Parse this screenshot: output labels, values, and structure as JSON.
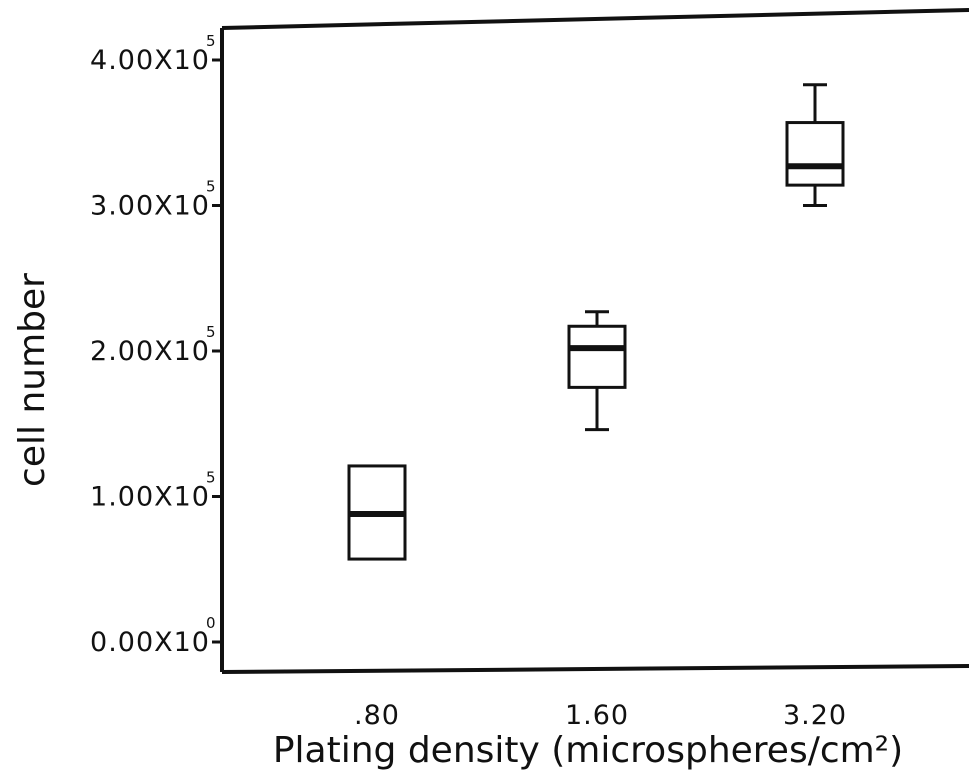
{
  "chart_data": {
    "type": "box",
    "xlabel": "Plating density (microspheres/cm²)",
    "ylabel": "cell number",
    "categories": [
      ".80",
      "1.60",
      "3.20"
    ],
    "y_ticks": [
      {
        "value": 0,
        "mantissa": "0.00X10",
        "exponent": "0"
      },
      {
        "value": 100000,
        "mantissa": "1.00X10",
        "exponent": "5"
      },
      {
        "value": 200000,
        "mantissa": "2.00X10",
        "exponent": "5"
      },
      {
        "value": 300000,
        "mantissa": "3.00X10",
        "exponent": "5"
      },
      {
        "value": 400000,
        "mantissa": "4.00X10",
        "exponent": "5"
      }
    ],
    "ylim": [
      0,
      400000
    ],
    "grid": false,
    "legend": "none",
    "boxes": [
      {
        "category": ".80",
        "whisker_low": 57000,
        "q1": 57000,
        "median": 88000,
        "q3": 121000,
        "whisker_high": 121000
      },
      {
        "category": "1.60",
        "whisker_low": 146000,
        "q1": 175000,
        "median": 202000,
        "q3": 217000,
        "whisker_high": 227000
      },
      {
        "category": "3.20",
        "whisker_low": 300000,
        "q1": 314000,
        "median": 327000,
        "q3": 357000,
        "whisker_high": 383000
      }
    ]
  }
}
